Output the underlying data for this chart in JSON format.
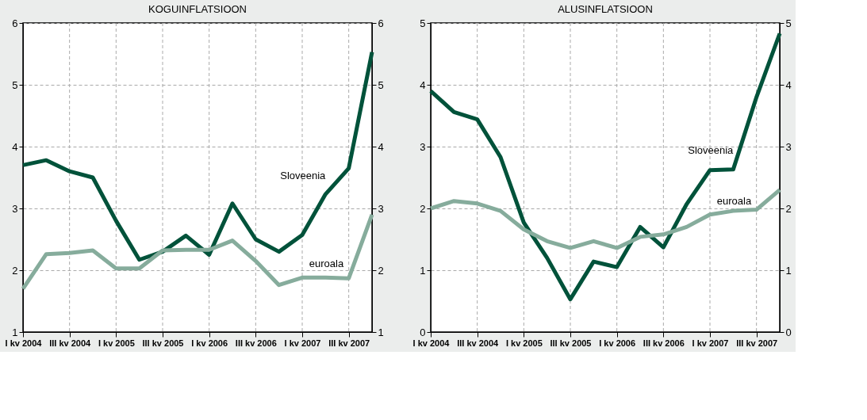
{
  "chart_data": [
    {
      "type": "line",
      "title": "KOGUINFLATSIOON",
      "categories": [
        "I kv 2004",
        null,
        "III kv 2004",
        null,
        "I kv 2005",
        null,
        "III kv 2005",
        null,
        "I kv 2006",
        null,
        "III kv 2006",
        null,
        "I kv 2007",
        null,
        "III kv 2007",
        null
      ],
      "series": [
        {
          "name": "Sloveenia",
          "color": "#00523a",
          "values": [
            3.7,
            3.78,
            3.6,
            3.5,
            2.8,
            2.17,
            2.3,
            2.56,
            2.25,
            3.08,
            2.5,
            2.3,
            2.57,
            3.23,
            3.65,
            5.53
          ]
        },
        {
          "name": "euroala",
          "color": "#86ac9c",
          "values": [
            1.7,
            2.26,
            2.28,
            2.32,
            2.03,
            2.03,
            2.32,
            2.33,
            2.33,
            2.48,
            2.15,
            1.76,
            1.88,
            1.88,
            1.87,
            2.9
          ]
        }
      ],
      "ylim": [
        1,
        6
      ],
      "yticks": [
        1,
        2,
        3,
        4,
        5,
        6
      ],
      "y2lim": [
        1,
        6
      ],
      "y2ticks": [
        1,
        2,
        3,
        4,
        5,
        6
      ],
      "grid": true
    },
    {
      "type": "line",
      "title": "ALUSINFLATSIOON",
      "categories": [
        "I kv 2004",
        null,
        "III kv 2004",
        null,
        "I kv 2005",
        null,
        "III kv 2005",
        null,
        "I kv 2006",
        null,
        "III kv 2006",
        null,
        "I kv 2007",
        null,
        "III kv 2007",
        null
      ],
      "series": [
        {
          "name": "Sloveenia",
          "color": "#00523a",
          "values": [
            3.9,
            3.56,
            3.44,
            2.83,
            1.77,
            1.2,
            0.53,
            1.14,
            1.05,
            1.7,
            1.37,
            2.07,
            2.62,
            2.63,
            3.8,
            4.83
          ]
        },
        {
          "name": "euroala",
          "color": "#86ac9c",
          "values": [
            2.0,
            2.12,
            2.08,
            1.96,
            1.66,
            1.47,
            1.36,
            1.47,
            1.36,
            1.54,
            1.58,
            1.7,
            1.9,
            1.96,
            1.98,
            2.3
          ]
        }
      ],
      "ylim": [
        0,
        5
      ],
      "yticks": [
        0,
        1,
        2,
        3,
        4,
        5
      ],
      "y2lim": [
        0,
        5
      ],
      "y2ticks": [
        0,
        1,
        2,
        3,
        4,
        5
      ],
      "grid": true
    }
  ]
}
